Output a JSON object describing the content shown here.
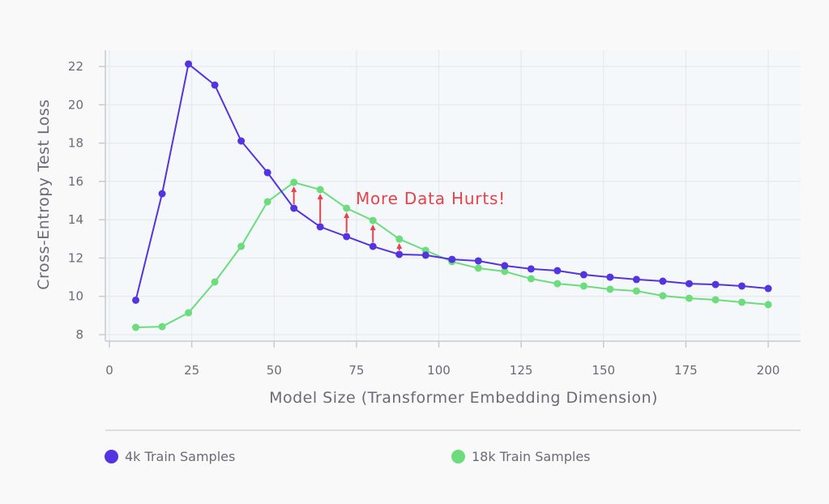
{
  "chart_data": {
    "type": "line",
    "title": "",
    "xlabel": "Model Size (Transformer Embedding Dimension)",
    "ylabel": "Cross-Entropy Test Loss",
    "xlim": [
      0,
      210
    ],
    "ylim": [
      7.7,
      22.6
    ],
    "xticks": [
      0,
      25,
      50,
      75,
      100,
      125,
      150,
      175,
      200
    ],
    "yticks": [
      8,
      10,
      12,
      14,
      16,
      18,
      20,
      22
    ],
    "grid": true,
    "legend_position": "bottom",
    "x": [
      8,
      16,
      24,
      32,
      40,
      48,
      56,
      64,
      72,
      80,
      88,
      96,
      104,
      112,
      120,
      128,
      136,
      144,
      152,
      160,
      168,
      176,
      184,
      192,
      200
    ],
    "series": [
      {
        "name": "4k Train Samples",
        "color": "#5433e0",
        "values": [
          9.8,
          15.36,
          22.13,
          21.03,
          18.11,
          16.46,
          14.6,
          13.63,
          13.12,
          12.61,
          12.19,
          12.15,
          11.93,
          11.85,
          11.6,
          11.43,
          11.34,
          11.13,
          11.0,
          10.88,
          10.79,
          10.66,
          10.62,
          10.54,
          10.41
        ]
      },
      {
        "name": "18k Train Samples",
        "color": "#6cdc7c",
        "values": [
          8.38,
          8.42,
          9.14,
          10.75,
          12.61,
          14.94,
          15.95,
          15.57,
          14.6,
          13.96,
          12.99,
          12.4,
          11.81,
          11.47,
          11.3,
          10.92,
          10.66,
          10.54,
          10.37,
          10.28,
          10.03,
          9.9,
          9.82,
          9.69,
          9.57
        ]
      }
    ],
    "annotation": {
      "text": "More Data Hurts!",
      "color": "#e8424a",
      "arrow_x": [
        56,
        64,
        72,
        80,
        88
      ],
      "x": 76,
      "y": 14.8
    }
  }
}
